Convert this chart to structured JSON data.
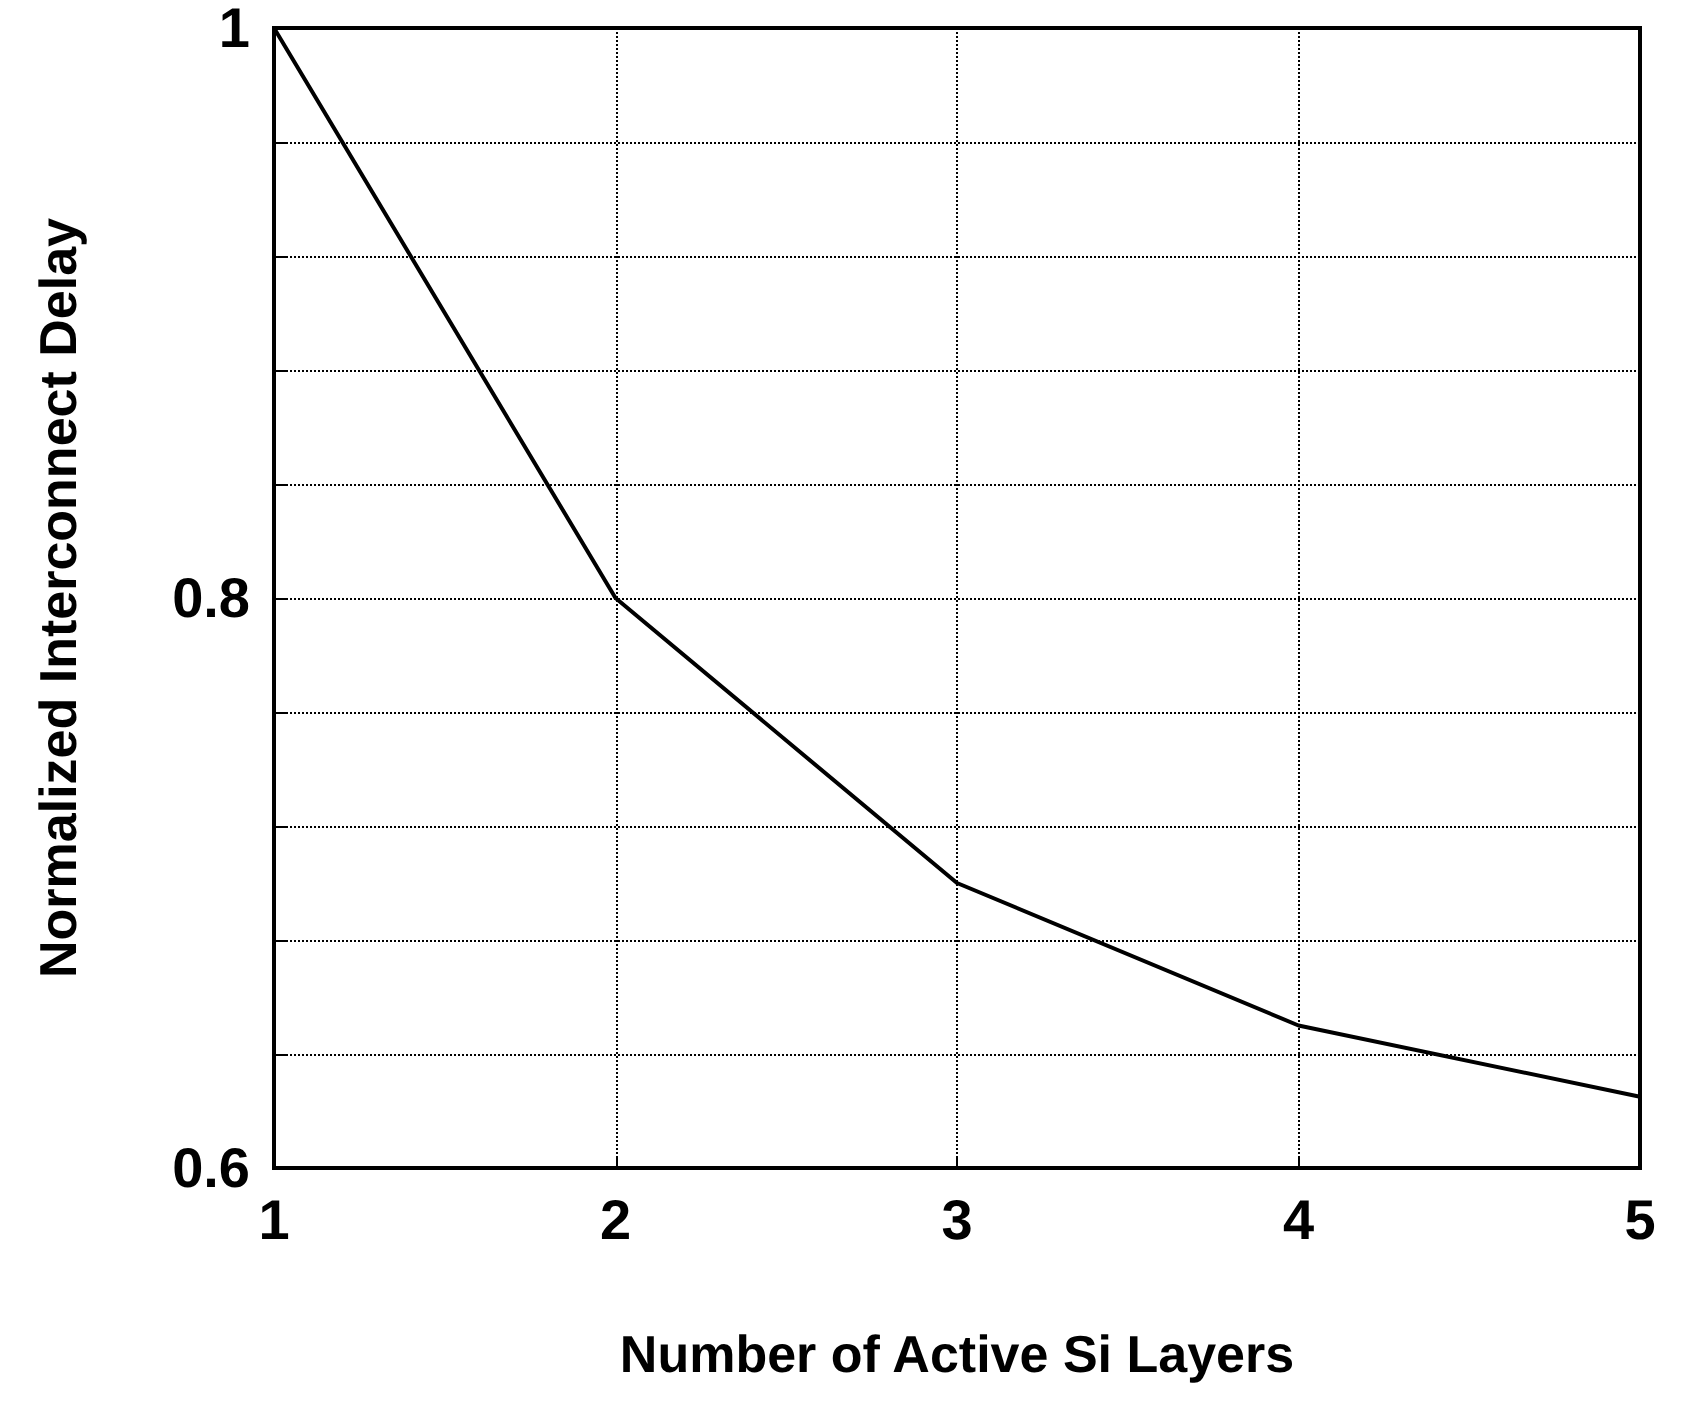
{
  "chart_data": {
    "type": "line",
    "xlabel": "Number of Active Si Layers",
    "ylabel": "Normalized Interconnect Delay",
    "x": [
      1,
      2,
      3,
      4,
      5
    ],
    "series": [
      {
        "color": "#000000",
        "values": [
          1,
          0.8,
          0.7,
          0.65,
          0.625
        ]
      }
    ],
    "xlim": [
      1,
      5
    ],
    "xticks": [
      1,
      2,
      3,
      4,
      5
    ],
    "ylim": [
      0.6,
      1
    ],
    "yticks": [
      0.6,
      {
        "value": 0.64,
        "label": null
      },
      {
        "value": 0.68,
        "label": null
      },
      {
        "value": 0.72,
        "label": null
      },
      {
        "value": 0.76,
        "label": null
      },
      0.8,
      {
        "value": 0.84,
        "label": null
      },
      {
        "value": 0.88,
        "label": null
      },
      {
        "value": 0.92,
        "label": null
      },
      {
        "value": 0.96,
        "label": null
      },
      1
    ],
    "grid": true,
    "marker": "none",
    "line_style": "solid"
  }
}
